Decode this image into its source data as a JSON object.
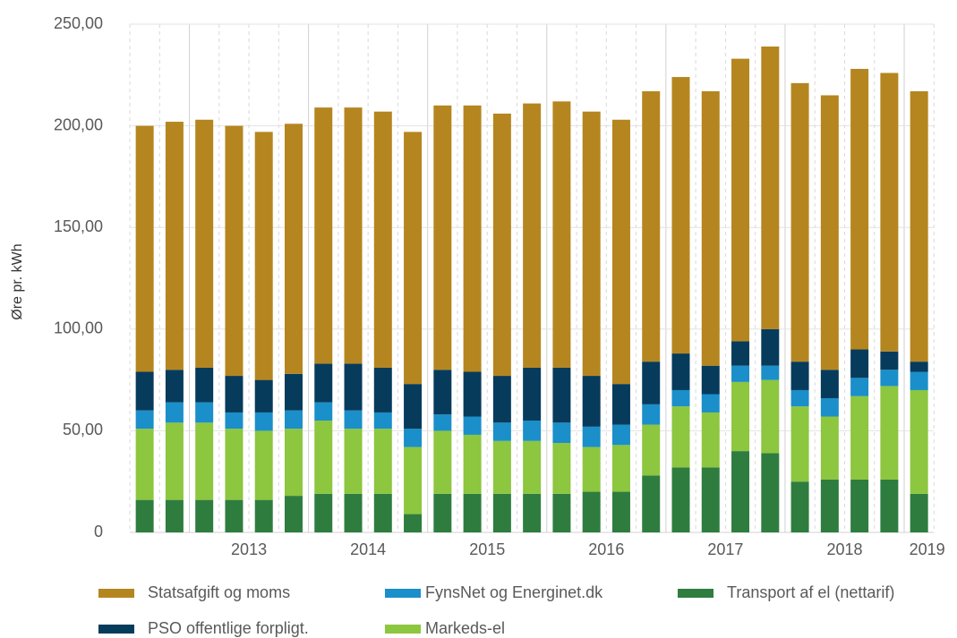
{
  "chart_data": {
    "type": "stacked_bar",
    "y_label": "Øre pr. kWh",
    "categories": [
      null,
      null,
      null,
      "2013",
      null,
      null,
      null,
      "2014",
      null,
      null,
      null,
      "2015",
      null,
      null,
      null,
      "2016",
      null,
      null,
      null,
      "2017",
      null,
      null,
      null,
      "2018",
      null,
      null,
      "2019"
    ],
    "series": [
      {
        "name": "Transport af el (nettarif)",
        "color": "#2e7d3f",
        "values": [
          16,
          16,
          16,
          16,
          16,
          18,
          19,
          19,
          19,
          9,
          19,
          19,
          19,
          19,
          19,
          20,
          20,
          28,
          32,
          32,
          40,
          39,
          25,
          26,
          26,
          26,
          19
        ]
      },
      {
        "name": "Markeds-el",
        "color": "#8dc63f",
        "values": [
          35,
          38,
          38,
          35,
          34,
          33,
          36,
          32,
          32,
          33,
          31,
          29,
          26,
          26,
          25,
          22,
          23,
          25,
          30,
          27,
          34,
          36,
          37,
          31,
          41,
          46,
          51
        ]
      },
      {
        "name": "FynsNet og Energinet.dk",
        "color": "#1a8fc9",
        "values": [
          9,
          10,
          10,
          8,
          9,
          9,
          9,
          9,
          8,
          9,
          8,
          9,
          9,
          10,
          10,
          10,
          10,
          10,
          8,
          9,
          8,
          7,
          8,
          9,
          9,
          8,
          9
        ]
      },
      {
        "name": "PSO offentlige forpligt.",
        "color": "#073b5c",
        "values": [
          19,
          16,
          17,
          18,
          16,
          18,
          19,
          23,
          22,
          22,
          22,
          22,
          23,
          26,
          27,
          25,
          20,
          21,
          18,
          14,
          12,
          18,
          14,
          14,
          14,
          9,
          5
        ]
      },
      {
        "name": "Statsafgift og moms",
        "color": "#b5861f",
        "values": [
          121,
          122,
          122,
          123,
          122,
          123,
          126,
          126,
          126,
          124,
          130,
          131,
          129,
          130,
          131,
          130,
          130,
          133,
          136,
          135,
          139,
          139,
          137,
          135,
          138,
          137,
          133
        ]
      }
    ],
    "ylim": [
      0,
      250
    ],
    "yticks": [
      0,
      {
        "value": 50,
        "label": "50,00"
      },
      {
        "value": 100,
        "label": "100,00"
      },
      {
        "value": 150,
        "label": "150,00"
      },
      {
        "value": 200,
        "label": "200,00"
      },
      {
        "value": 250,
        "label": "250,00"
      }
    ],
    "grid": true
  }
}
